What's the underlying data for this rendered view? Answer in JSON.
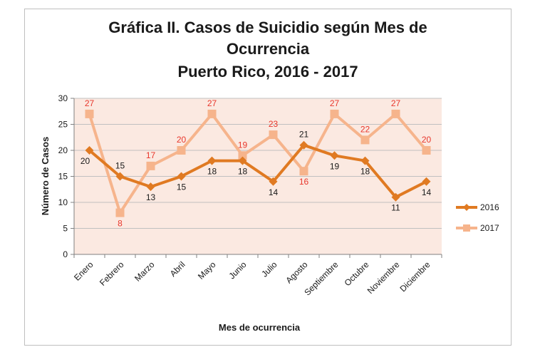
{
  "chart_data": {
    "type": "line",
    "title_lines": [
      "Gráfica II. Casos de Suicidio según Mes de",
      "Ocurrencia",
      "Puerto Rico, 2016 - 2017"
    ],
    "xlabel": "Mes de ocurrencia",
    "ylabel": "Número de Casos",
    "ylim": [
      0,
      30
    ],
    "yticks": [
      0,
      5,
      10,
      15,
      20,
      25,
      30
    ],
    "grid": true,
    "legend_position": "right",
    "categories": [
      "Enero",
      "Febrero",
      "Marzo",
      "Abril",
      "Mayo",
      "Junio",
      "Julio",
      "Agosto",
      "Septiembre",
      "Octubre",
      "Noviembre",
      "Diciembre"
    ],
    "series": [
      {
        "name": "2016",
        "values": [
          20,
          15,
          13,
          15,
          18,
          18,
          14,
          21,
          19,
          18,
          11,
          14
        ],
        "color": "#e07a22",
        "label_color": "#1a1a1a"
      },
      {
        "name": "2017",
        "values": [
          27,
          8,
          17,
          20,
          27,
          19,
          23,
          16,
          27,
          22,
          27,
          20
        ],
        "color": "#f6b48c",
        "label_color": "#e8372c"
      }
    ],
    "plot_background": "#fbe9e1",
    "gridline_color": "#c0c0c0"
  }
}
